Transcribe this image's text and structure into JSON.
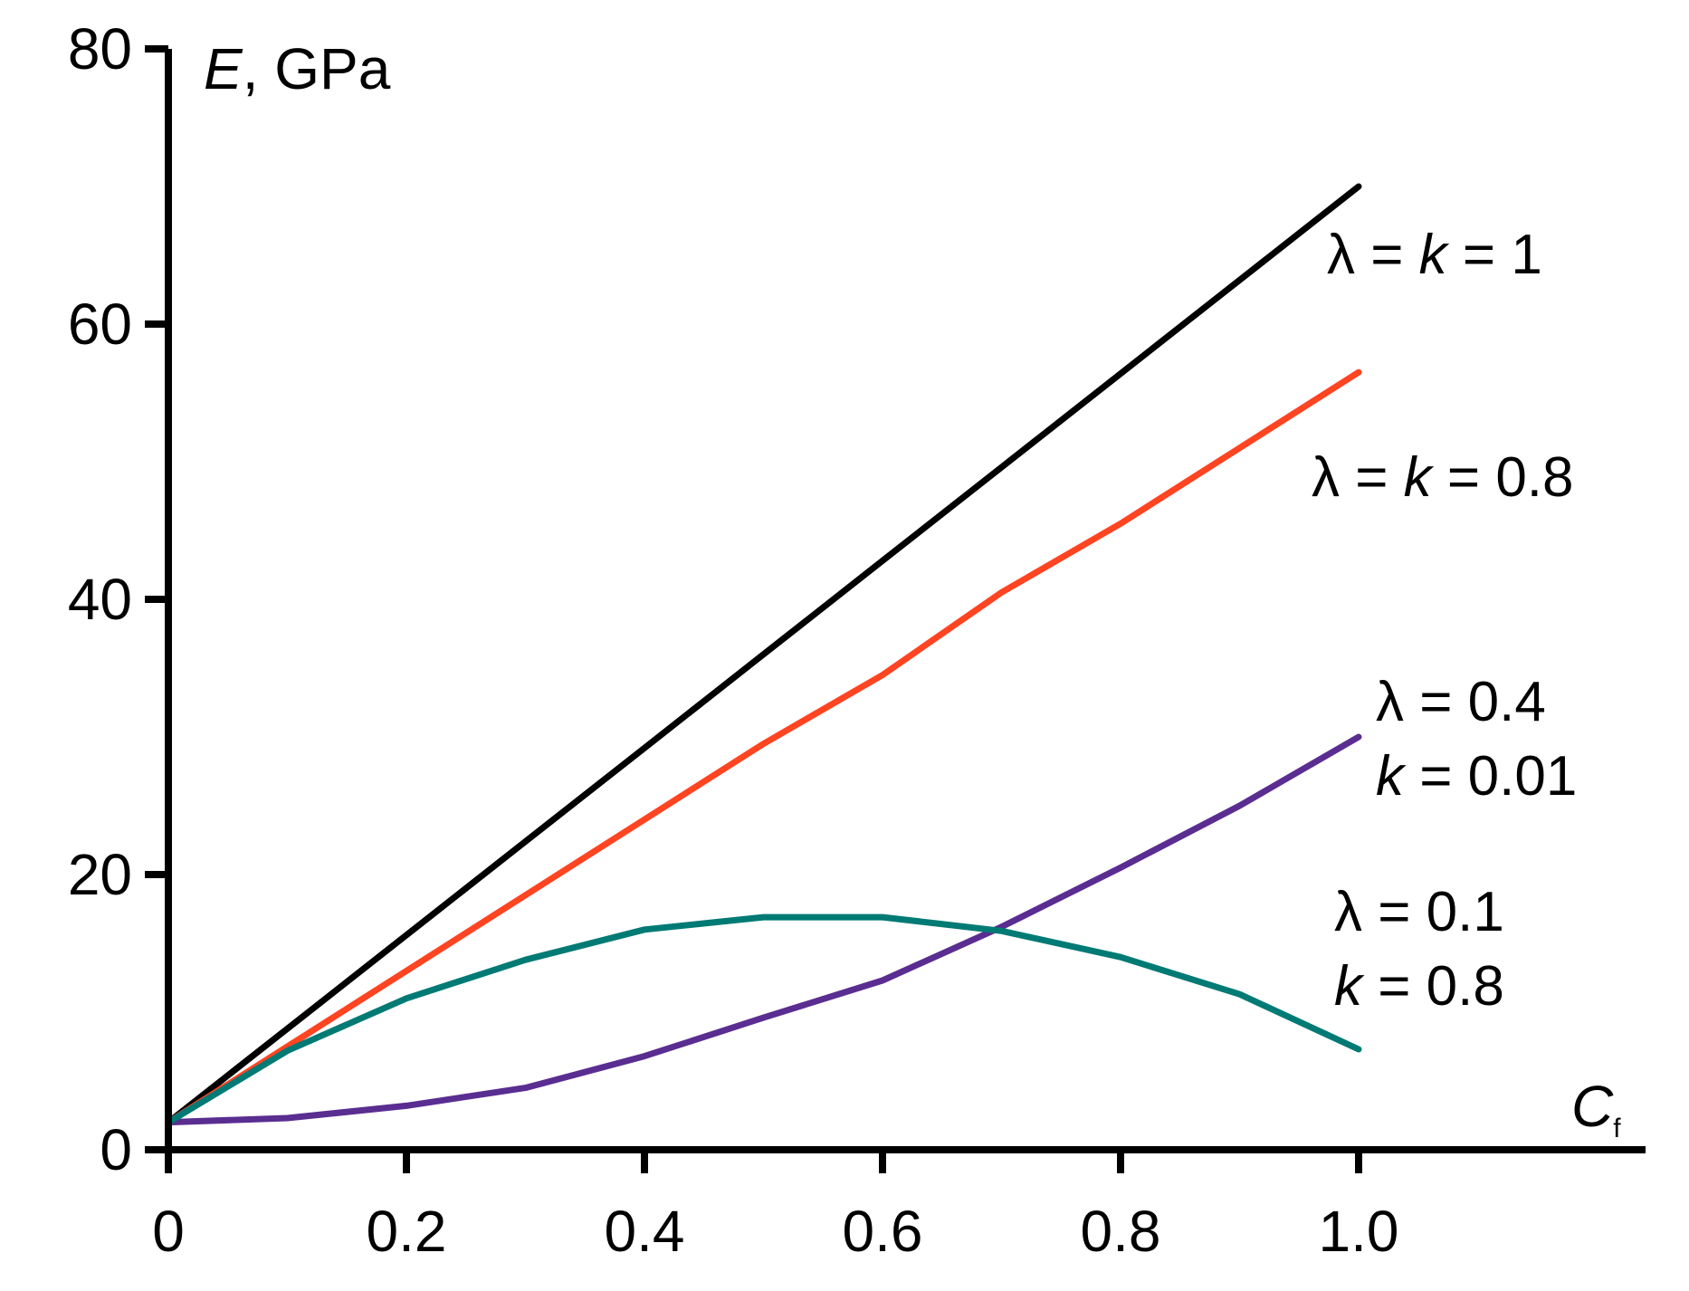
{
  "chart_data": {
    "type": "line",
    "x_title": {
      "symbol": "C",
      "subscript": "f"
    },
    "y_title": {
      "symbol": "E",
      "unit": ", GPa"
    },
    "xlim": [
      0,
      1.2
    ],
    "ylim": [
      0,
      80
    ],
    "x_ticks": [
      "0",
      "0.2",
      "0.4",
      "0.6",
      "0.8",
      "1.0"
    ],
    "x_tick_values": [
      0,
      0.2,
      0.4,
      0.6,
      0.8,
      1.0
    ],
    "y_ticks": [
      "0",
      "20",
      "40",
      "60",
      "80"
    ],
    "y_tick_values": [
      0,
      20,
      40,
      60,
      80
    ],
    "grid": false,
    "x": [
      0,
      0.1,
      0.2,
      0.3,
      0.4,
      0.5,
      0.6,
      0.7,
      0.8,
      0.9,
      1.0
    ],
    "series": [
      {
        "color": "#000000",
        "label_lines": [
          [
            "λ = ",
            "k",
            " = 1"
          ]
        ],
        "values": [
          2,
          8.8,
          15.6,
          22.4,
          29.2,
          36,
          42.8,
          49.6,
          56.4,
          63.2,
          70
        ]
      },
      {
        "color": "#ff4422",
        "label_lines": [
          [
            "λ = ",
            "k",
            " = 0.8"
          ]
        ],
        "values": [
          2,
          7.5,
          13,
          18.5,
          24,
          29.5,
          34.5,
          40.5,
          45.5,
          51,
          56.5
        ]
      },
      {
        "color": "#5a2d91",
        "label_lines": [
          [
            "λ = 0.4"
          ],
          [
            "k",
            " = 0.01"
          ]
        ],
        "values": [
          2,
          2.3,
          3.2,
          4.5,
          6.8,
          9.6,
          12.3,
          16.2,
          20.5,
          25,
          30
        ]
      },
      {
        "color": "#007a74",
        "label_lines": [
          [
            "λ = 0.1"
          ],
          [
            "k",
            " = 0.8"
          ]
        ],
        "values": [
          2,
          7.2,
          11,
          13.8,
          16,
          16.9,
          16.9,
          15.9,
          14,
          11.3,
          7.3
        ]
      }
    ]
  }
}
